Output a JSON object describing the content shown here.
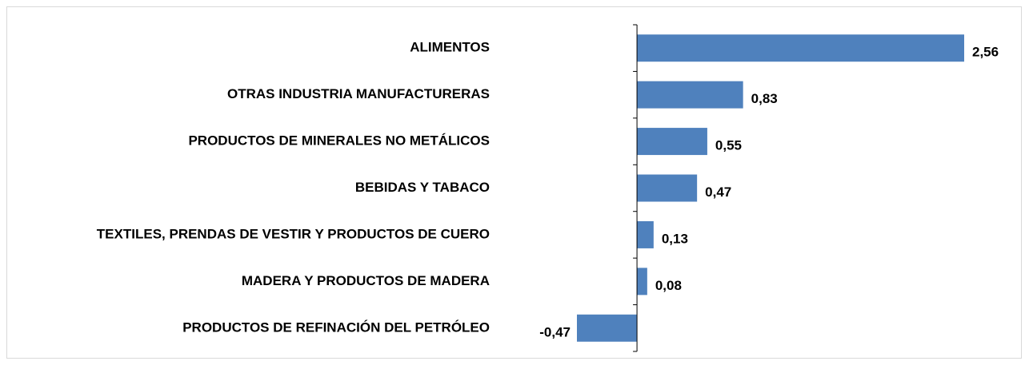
{
  "chart_data": {
    "type": "bar",
    "orientation": "horizontal",
    "categories": [
      "ALIMENTOS",
      "OTRAS INDUSTRIA MANUFACTURERAS",
      "PRODUCTOS DE MINERALES NO METÁLICOS",
      "BEBIDAS Y TABACO",
      "TEXTILES, PRENDAS DE VESTIR Y PRODUCTOS DE CUERO",
      "MADERA Y PRODUCTOS DE MADERA",
      "PRODUCTOS DE REFINACIÓN DEL PETRÓLEO"
    ],
    "values": [
      2.56,
      0.83,
      0.55,
      0.47,
      0.13,
      0.08,
      -0.47
    ],
    "value_labels": [
      "2,56",
      "0,83",
      "0,55",
      "0,47",
      "0,13",
      "0,08",
      "-0,47"
    ],
    "color": "#4f81bd"
  }
}
